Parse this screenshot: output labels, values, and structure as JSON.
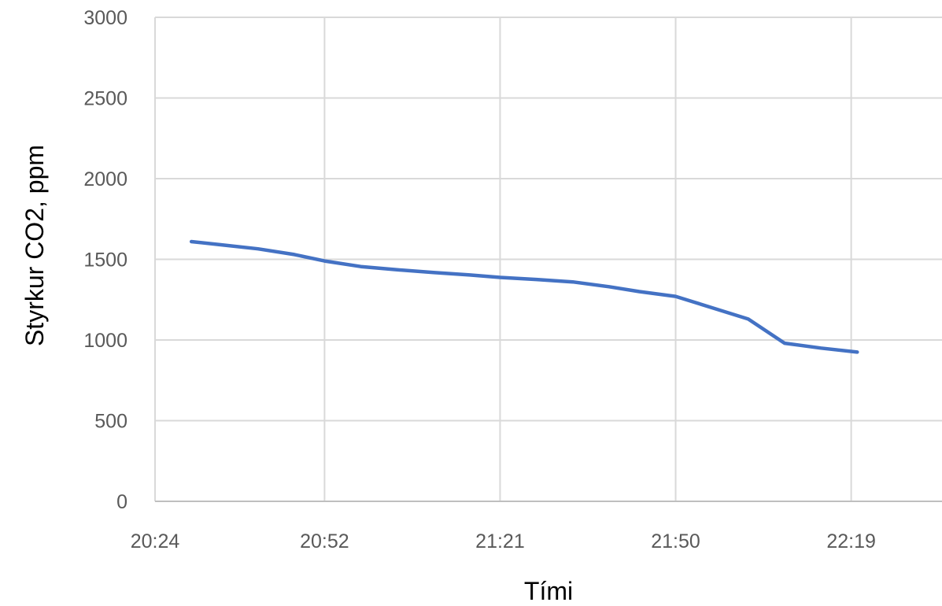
{
  "chart_data": {
    "type": "line",
    "title": "",
    "xlabel": "Tími",
    "ylabel": "Styrkur CO2, ppm",
    "x_tick_labels": [
      "20:24",
      "20:52",
      "21:21",
      "21:50",
      "22:19"
    ],
    "y_tick_labels": [
      "0",
      "500",
      "1000",
      "1500",
      "2000",
      "2500",
      "3000"
    ],
    "xlim": [
      "20:24",
      "22:34"
    ],
    "ylim": [
      0,
      3000
    ],
    "grid": true,
    "legend": "none",
    "series": [
      {
        "color": "#4472c4",
        "x": [
          "20:30",
          "20:35",
          "20:41",
          "20:47",
          "20:52",
          "20:58",
          "21:04",
          "21:10",
          "21:16",
          "21:21",
          "21:27",
          "21:33",
          "21:39",
          "21:44",
          "21:50",
          "21:56",
          "22:02",
          "22:08",
          "22:14",
          "22:20"
        ],
        "values": [
          1610,
          1590,
          1565,
          1530,
          1490,
          1455,
          1435,
          1418,
          1403,
          1388,
          1375,
          1360,
          1330,
          1300,
          1270,
          1200,
          1130,
          980,
          950,
          925
        ]
      }
    ]
  }
}
